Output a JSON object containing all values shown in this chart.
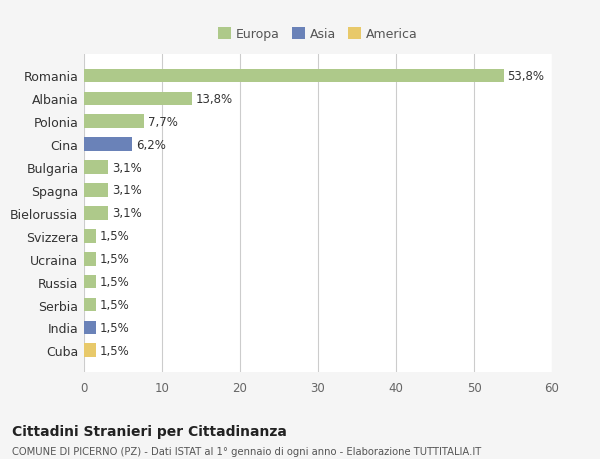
{
  "categories": [
    "Romania",
    "Albania",
    "Polonia",
    "Cina",
    "Bulgaria",
    "Spagna",
    "Bielorussia",
    "Svizzera",
    "Ucraina",
    "Russia",
    "Serbia",
    "India",
    "Cuba"
  ],
  "values": [
    53.8,
    13.8,
    7.7,
    6.2,
    3.1,
    3.1,
    3.1,
    1.5,
    1.5,
    1.5,
    1.5,
    1.5,
    1.5
  ],
  "labels": [
    "53,8%",
    "13,8%",
    "7,7%",
    "6,2%",
    "3,1%",
    "3,1%",
    "3,1%",
    "1,5%",
    "1,5%",
    "1,5%",
    "1,5%",
    "1,5%",
    "1,5%"
  ],
  "bar_colors": [
    "#aec98a",
    "#aec98a",
    "#aec98a",
    "#6a82b8",
    "#aec98a",
    "#aec98a",
    "#aec98a",
    "#aec98a",
    "#aec98a",
    "#aec98a",
    "#aec98a",
    "#6a82b8",
    "#e8c96a"
  ],
  "legend_labels": [
    "Europa",
    "Asia",
    "America"
  ],
  "legend_colors": [
    "#aec98a",
    "#6a82b8",
    "#e8c96a"
  ],
  "xlim": [
    0,
    60
  ],
  "xticks": [
    0,
    10,
    20,
    30,
    40,
    50,
    60
  ],
  "title": "Cittadini Stranieri per Cittadinanza",
  "subtitle": "COMUNE DI PICERNO (PZ) - Dati ISTAT al 1° gennaio di ogni anno - Elaborazione TUTTITALIA.IT",
  "bg_color": "#f5f5f5",
  "plot_bg_color": "#ffffff"
}
